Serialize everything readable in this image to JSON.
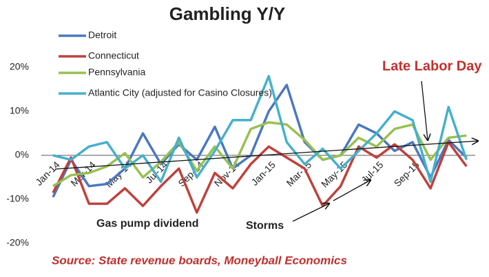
{
  "chart_data": {
    "type": "line",
    "title": "Gambling Y/Y",
    "categories": [
      "Jan-14",
      null,
      "Mar-14",
      null,
      "May-14",
      null,
      "Jul-14",
      null,
      "Sep-14",
      null,
      "Nov-14",
      null,
      "Jan-15",
      null,
      "Mar-15",
      null,
      "May-15",
      null,
      "Jul-15",
      null,
      "Sep-15",
      null,
      null,
      null
    ],
    "series": [
      {
        "name": "Detroit",
        "color": "#4a78c0",
        "values": [
          -9.5,
          -1,
          -7,
          -6.5,
          -3,
          5,
          -2,
          2.5,
          -1,
          6.5,
          -3,
          0,
          10,
          16,
          3,
          -1,
          0,
          7,
          5,
          1,
          3,
          -5,
          3.5,
          -0.5
        ]
      },
      {
        "name": "Connecticut",
        "color": "#c0403c",
        "values": [
          -8.5,
          -0.5,
          -11,
          -11,
          -7.5,
          -11.5,
          -7,
          -3,
          -13,
          -4,
          -7.5,
          -2,
          2,
          -0.5,
          -3,
          -11.5,
          -7,
          2,
          -0.5,
          2.5,
          -1,
          -7.5,
          3,
          -2.5
        ]
      },
      {
        "name": "Pennsylvania",
        "color": "#98c050",
        "values": [
          -7,
          -4.5,
          -4,
          -2.5,
          0.5,
          -5,
          -1.5,
          3,
          -3.5,
          2,
          -3,
          6,
          7.5,
          7,
          3.5,
          -1,
          0,
          4,
          2,
          6,
          7,
          -1,
          4,
          4.5
        ]
      },
      {
        "name": "Atlantic City (adjusted for Casino Closures)",
        "color": "#45b0cc",
        "values": [
          0,
          -1,
          2,
          3,
          -3,
          0,
          -6,
          4,
          -5,
          1,
          8,
          8,
          18,
          3,
          -2,
          1.5,
          -3,
          1,
          5,
          10,
          8,
          -6,
          11,
          -1
        ]
      }
    ],
    "ylim": [
      -20,
      20
    ],
    "yticks": [
      {
        "value": -20,
        "label": "-20%"
      },
      {
        "value": -10,
        "label": "-10%"
      },
      {
        "value": 0,
        "label": "0%"
      },
      {
        "value": 10,
        "label": "10%"
      },
      {
        "value": 20,
        "label": "20%"
      }
    ],
    "annotations": [
      "Late Labor Day",
      "Gas pump dividend",
      "Storms"
    ],
    "source": "Source: State revenue boards, Moneyball Economics"
  }
}
